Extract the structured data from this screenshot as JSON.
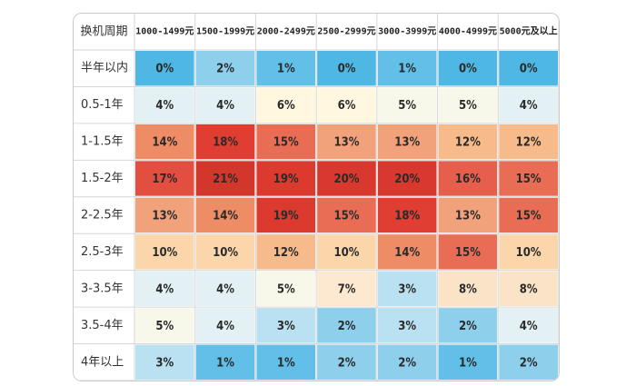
{
  "chart_data": {
    "type": "heatmap",
    "corner_label": "换机周期",
    "columns": [
      "1000-1499元",
      "1500-1999元",
      "2000-2499元",
      "2500-2999元",
      "3000-3999元",
      "4000-4999元",
      "5000元及以上"
    ],
    "rows": [
      "半年以内",
      "0.5-1年",
      "1-1.5年",
      "1.5-2年",
      "2-2.5年",
      "2.5-3年",
      "3-3.5年",
      "3.5-4年",
      "4年以上"
    ],
    "values": [
      [
        "0%",
        "2%",
        "1%",
        "0%",
        "1%",
        "0%",
        "0%"
      ],
      [
        "4%",
        "4%",
        "6%",
        "6%",
        "5%",
        "5%",
        "4%"
      ],
      [
        "14%",
        "18%",
        "15%",
        "13%",
        "13%",
        "12%",
        "12%"
      ],
      [
        "17%",
        "21%",
        "19%",
        "20%",
        "20%",
        "16%",
        "15%"
      ],
      [
        "13%",
        "14%",
        "19%",
        "15%",
        "18%",
        "13%",
        "15%"
      ],
      [
        "10%",
        "10%",
        "12%",
        "10%",
        "14%",
        "15%",
        "10%"
      ],
      [
        "4%",
        "4%",
        "5%",
        "7%",
        "3%",
        "8%",
        "8%"
      ],
      [
        "5%",
        "4%",
        "3%",
        "2%",
        "3%",
        "2%",
        "4%"
      ],
      [
        "3%",
        "1%",
        "1%",
        "2%",
        "2%",
        "1%",
        "2%"
      ]
    ],
    "palette": {
      "v0": "#4fb7e4",
      "v1": "#62c0e8",
      "v2": "#8ed0ec",
      "v3": "#b9e1f1",
      "v4": "#e3f1f5",
      "v5": "#f7f8ea",
      "v6": "#fff7df",
      "v7": "#fde9d0",
      "v8": "#fbe3c8",
      "v10": "#fbd6ab",
      "v12": "#f7ba8b",
      "v13": "#f2a27a",
      "v14": "#ee8c66",
      "v15": "#e96d55",
      "v16": "#e65f4c",
      "v17": "#e24f40",
      "v18": "#e03e33",
      "v19": "#dc3a2f",
      "v20": "#d8382d",
      "v21": "#d3372c",
      "header": "#ffffff",
      "label": "#ffffff",
      "grid": "#ffffff"
    }
  }
}
